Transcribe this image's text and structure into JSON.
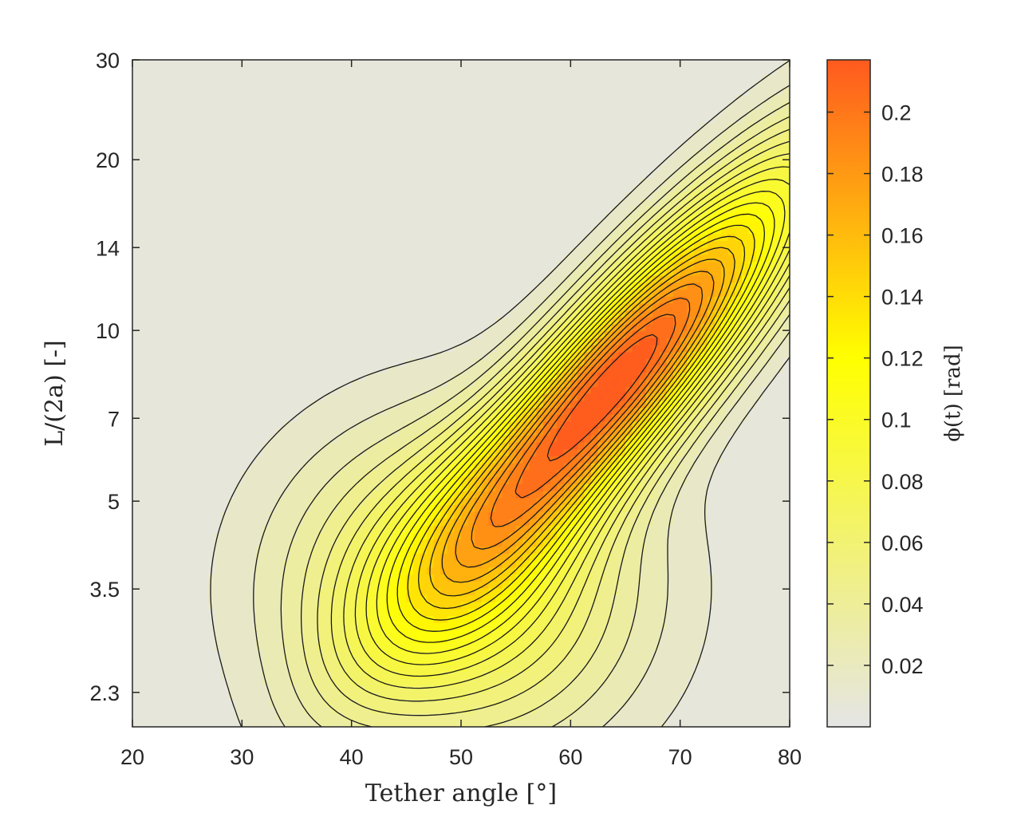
{
  "chart_data": {
    "type": "heatmap",
    "subtype": "filled-contour",
    "title": "",
    "xlabel": "Tether angle [°]",
    "ylabel": "L/(2a) [-]",
    "colorbar_label": "ϕ(t) [rad]",
    "x_range": [
      20,
      80
    ],
    "x_ticks": [
      "20",
      "30",
      "40",
      "50",
      "60",
      "70",
      "80"
    ],
    "y_scale": "log",
    "y_range": [
      2.0,
      30
    ],
    "y_ticks": [
      2.3,
      3.5,
      5,
      7,
      10,
      14,
      20,
      30
    ],
    "y_tick_labels": [
      "2.3",
      "3.5",
      "5",
      "7",
      "10",
      "14",
      "20",
      "30"
    ],
    "colorbar_range": [
      0,
      0.217
    ],
    "colorbar_ticks": [
      0.02,
      0.04,
      0.06,
      0.08,
      0.1,
      0.12,
      0.14,
      0.16,
      0.18,
      0.2
    ],
    "colorbar_tick_labels": [
      "0.02",
      "0.04",
      "0.06",
      "0.08",
      "0.1",
      "0.12",
      "0.14",
      "0.16",
      "0.18",
      "0.2"
    ],
    "contour_step": 0.01,
    "peak": {
      "x": 65,
      "y": 8.5,
      "value": 0.215
    },
    "secondary_lobe": {
      "x": 50,
      "y": 3.5,
      "value": 0.12
    },
    "colormap": [
      {
        "value": 0.0,
        "color": "#e5e5e5"
      },
      {
        "value": 0.12,
        "color": "#ffff00"
      },
      {
        "value": 0.217,
        "color": "#ff5a1f"
      }
    ]
  }
}
